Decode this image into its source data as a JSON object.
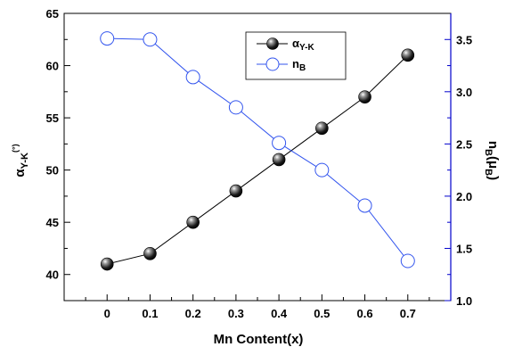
{
  "chart_data": {
    "type": "line",
    "x": [
      0,
      0.1,
      0.2,
      0.3,
      0.4,
      0.5,
      0.6,
      0.7
    ],
    "xlim": [
      -0.1,
      0.8
    ],
    "xticks": [
      "0",
      "0.1",
      "0.2",
      "0.3",
      "0.4",
      "0.5",
      "0.6",
      "0.7"
    ],
    "xlabel": "Mn Content(x)",
    "left_axis": {
      "label_main": "α",
      "label_sub": "Y-K",
      "label_sup": "(°)",
      "ylim": [
        37.5,
        65
      ],
      "ticks": [
        "40",
        "45",
        "50",
        "55",
        "60",
        "65"
      ],
      "color": "#000000"
    },
    "right_axis": {
      "label_main": "n",
      "label_sub": "B",
      "label_unit": "(μ",
      "label_unit_sub": "B",
      "label_close": ")",
      "ylim": [
        1.0,
        3.75
      ],
      "ticks": [
        "1.0",
        "1.5",
        "2.0",
        "2.5",
        "3.0",
        "3.5"
      ],
      "color": "#0000cc"
    },
    "series": [
      {
        "axis": "left",
        "marker": "filled-sphere",
        "color": "#000000",
        "values": [
          41,
          42,
          45,
          48,
          51,
          54,
          57,
          61
        ],
        "legend_main": "α",
        "legend_sub": "Y-K"
      },
      {
        "axis": "right",
        "marker": "open-circle",
        "color": "#3355ee",
        "values": [
          3.51,
          3.5,
          3.14,
          2.85,
          2.51,
          2.25,
          1.91,
          1.38
        ],
        "legend_main": "n",
        "legend_sub": "B"
      }
    ],
    "legend": "top-center"
  }
}
